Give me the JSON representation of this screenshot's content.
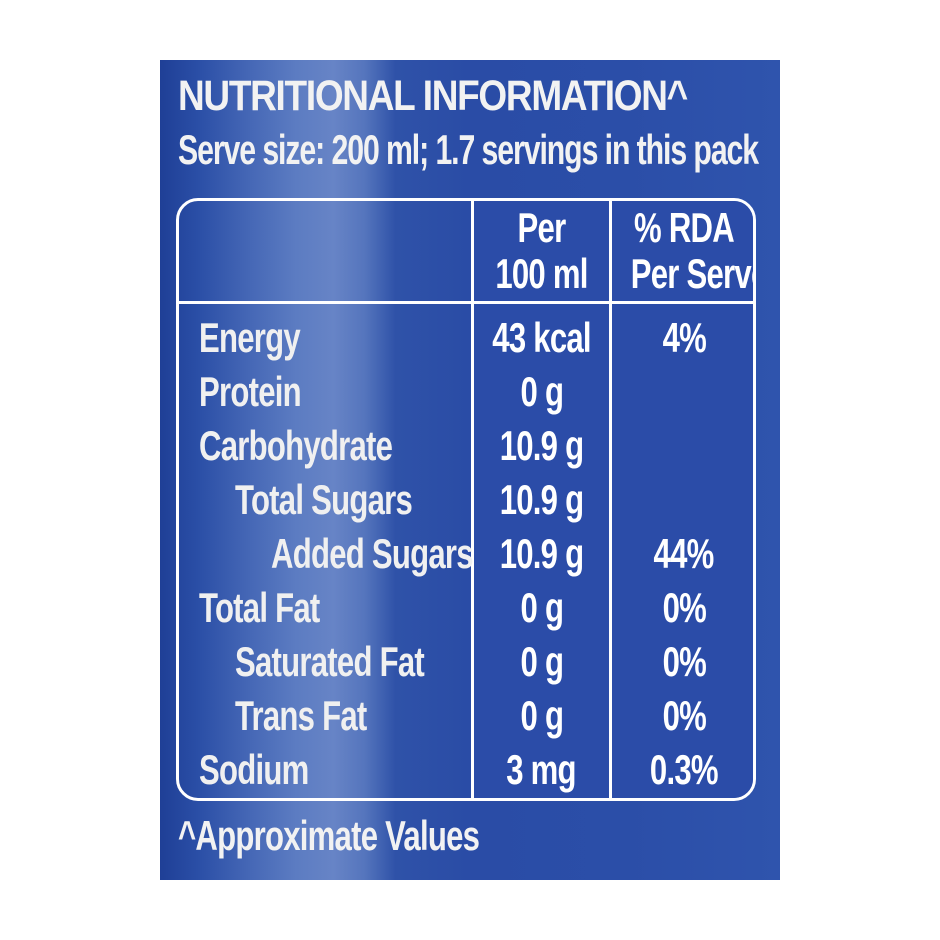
{
  "panel": {
    "title": "NUTRITIONAL INFORMATION^",
    "subtitle": "Serve size: 200 ml; 1.7 servings in this pack",
    "background_color": "#2a4ca6",
    "text_color": "#ffffff"
  },
  "table": {
    "headers": {
      "nutrient": "",
      "per_100ml_line1": "Per",
      "per_100ml_line2": "100 ml",
      "rda_line1": "% RDA",
      "rda_line2": "Per Serve"
    },
    "rows": [
      {
        "label": "Energy",
        "indent": 0,
        "per_100ml": "43 kcal",
        "rda": "4%"
      },
      {
        "label": "Protein",
        "indent": 0,
        "per_100ml": "0 g",
        "rda": ""
      },
      {
        "label": "Carbohydrate",
        "indent": 0,
        "per_100ml": "10.9 g",
        "rda": ""
      },
      {
        "label": "Total Sugars",
        "indent": 1,
        "per_100ml": "10.9 g",
        "rda": ""
      },
      {
        "label": "Added Sugars",
        "indent": 2,
        "per_100ml": "10.9 g",
        "rda": "44%"
      },
      {
        "label": "Total Fat",
        "indent": 0,
        "per_100ml": "0 g",
        "rda": "0%"
      },
      {
        "label": "Saturated Fat",
        "indent": 1,
        "per_100ml": "0 g",
        "rda": "0%"
      },
      {
        "label": "Trans Fat",
        "indent": 1,
        "per_100ml": "0 g",
        "rda": "0%"
      },
      {
        "label": "Sodium",
        "indent": 0,
        "per_100ml": "3 mg",
        "rda": "0.3%"
      }
    ]
  },
  "footnote": "^Approximate Values"
}
